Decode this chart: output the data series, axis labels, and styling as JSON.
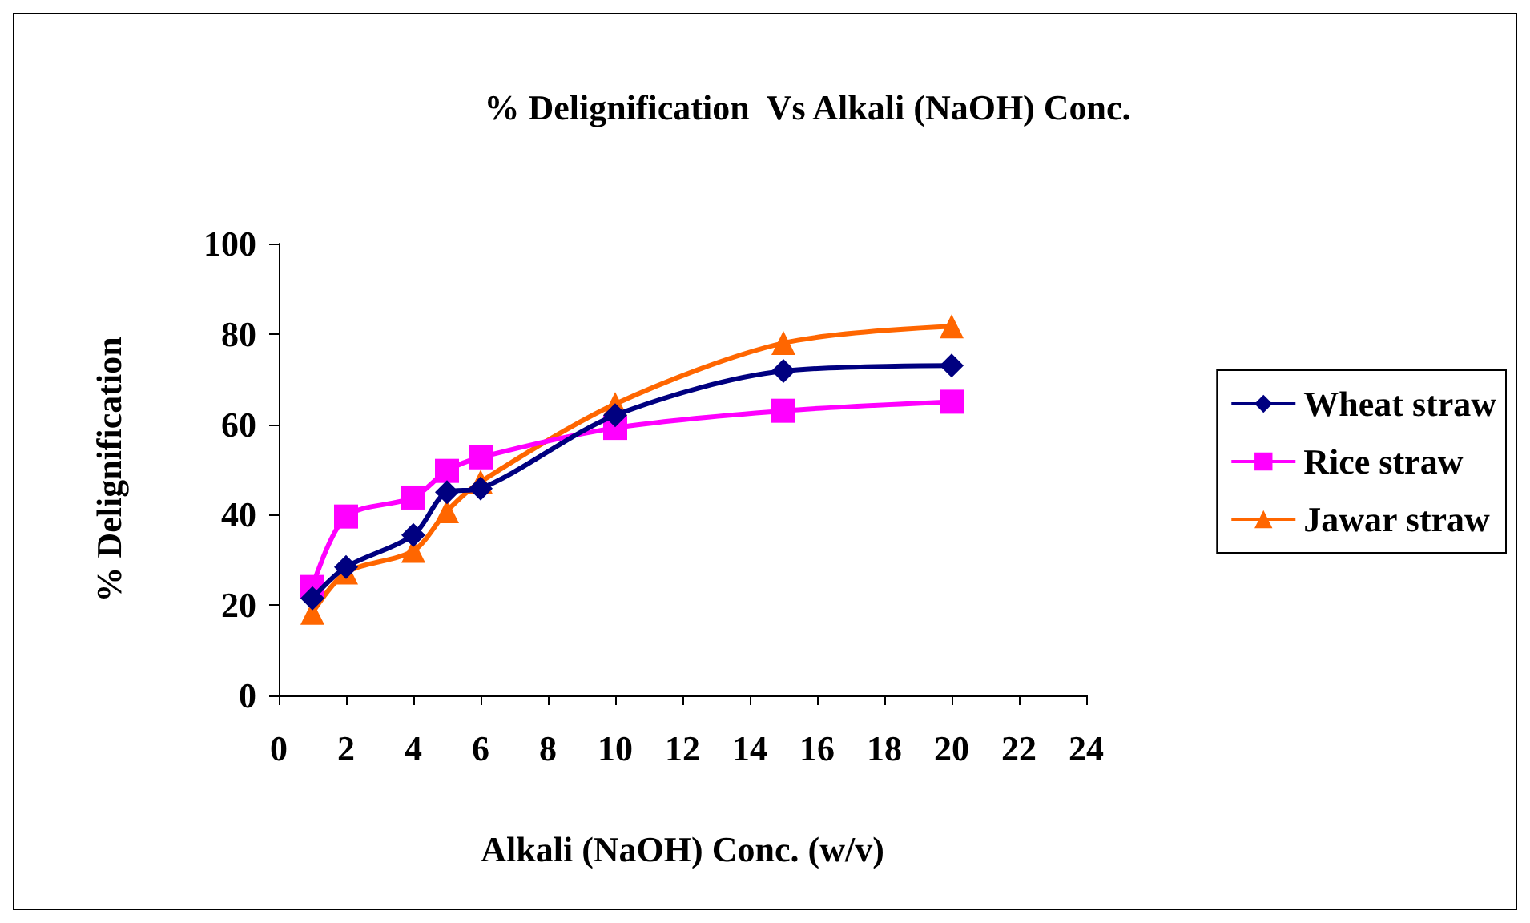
{
  "chart_data": {
    "type": "line",
    "title": "% Delignification  Vs Alkali (NaOH) Conc.",
    "xlabel": "Alkali (NaOH) Conc. (w/v)",
    "ylabel": "% Delignification",
    "x": [
      1,
      2,
      4,
      5,
      6,
      10,
      15,
      20
    ],
    "series": [
      {
        "name": "Wheat straw",
        "color": "#000080",
        "marker": "diamond",
        "values": [
          21.5,
          28.4,
          35.5,
          45,
          45.8,
          62,
          71.8,
          73
        ]
      },
      {
        "name": "Rice straw",
        "color": "#ff00ff",
        "marker": "square",
        "values": [
          24,
          39.6,
          43.8,
          49.7,
          52.7,
          59.2,
          63,
          65
        ]
      },
      {
        "name": "Jawar straw",
        "color": "#ff6600",
        "marker": "triangle",
        "values": [
          18.3,
          27.2,
          32,
          40.8,
          47.3,
          64.5,
          78,
          81.7
        ]
      }
    ],
    "xlim": [
      0,
      24
    ],
    "xticks": [
      0,
      2,
      4,
      6,
      8,
      10,
      12,
      14,
      16,
      18,
      20,
      22,
      24
    ],
    "ylim": [
      0,
      100
    ],
    "yticks": [
      0,
      20,
      40,
      60,
      80,
      100
    ],
    "grid": false,
    "legend": "right",
    "line_style": "solid"
  }
}
